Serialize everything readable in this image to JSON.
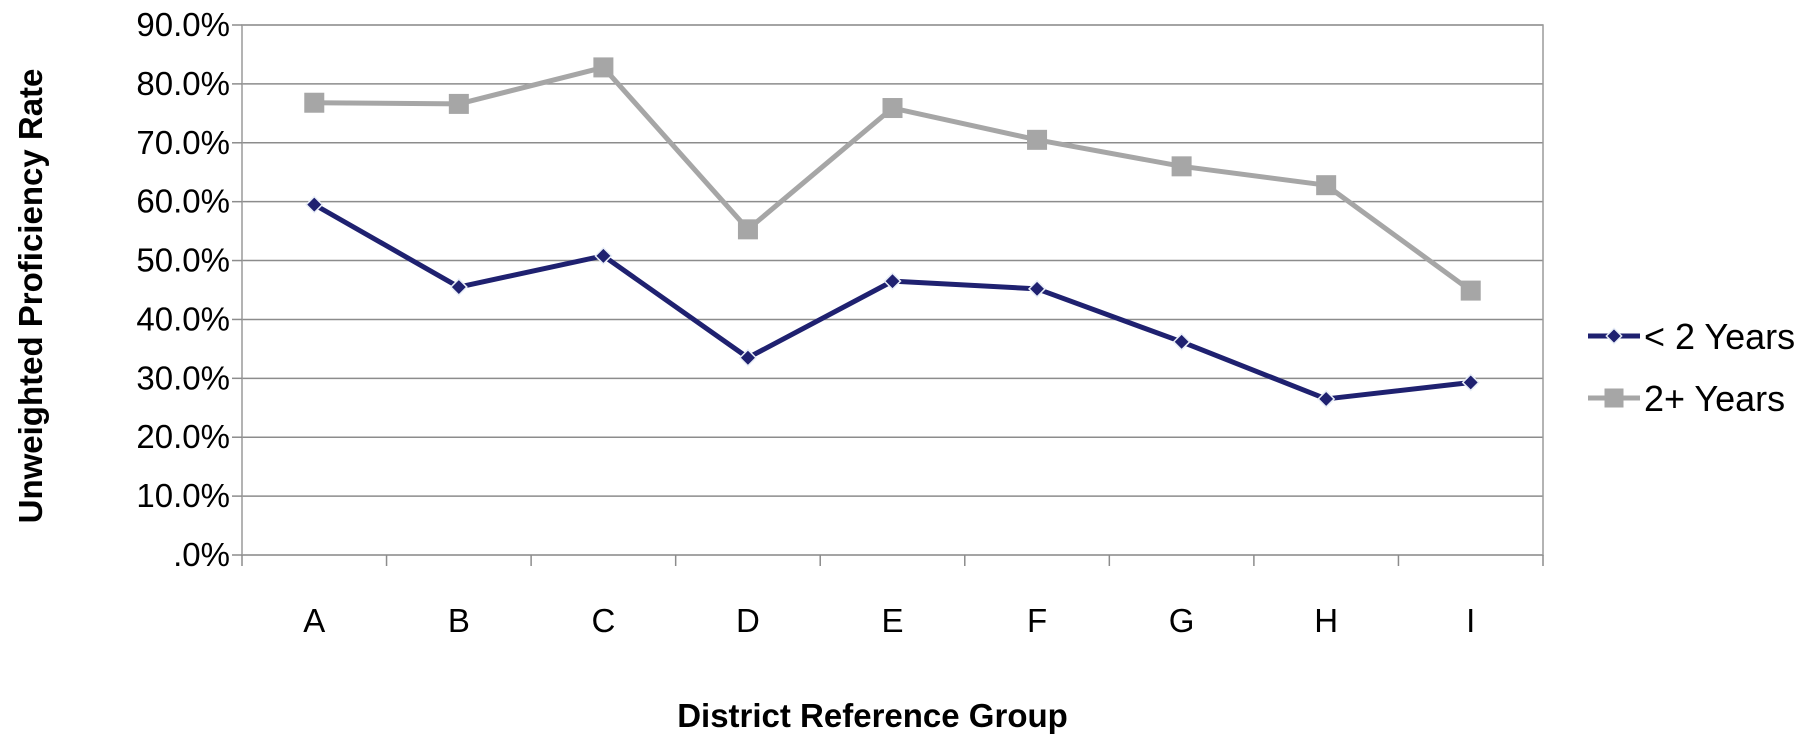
{
  "chart_data": {
    "type": "line",
    "title": "",
    "xlabel": "District Reference Group",
    "ylabel": "Unweighted Proficiency Rate",
    "categories": [
      "A",
      "B",
      "C",
      "D",
      "E",
      "F",
      "G",
      "H",
      "I"
    ],
    "ylim": [
      0,
      90
    ],
    "yticks": [
      {
        "value": 0,
        "label": ".0%"
      },
      {
        "value": 10,
        "label": "10.0%"
      },
      {
        "value": 20,
        "label": "20.0%"
      },
      {
        "value": 30,
        "label": "30.0%"
      },
      {
        "value": 40,
        "label": "40.0%"
      },
      {
        "value": 50,
        "label": "50.0%"
      },
      {
        "value": 60,
        "label": "60.0%"
      },
      {
        "value": 70,
        "label": "70.0%"
      },
      {
        "value": 80,
        "label": "80.0%"
      },
      {
        "value": 90,
        "label": "90.0%"
      }
    ],
    "grid": true,
    "legend_position": "right",
    "series": [
      {
        "name": "< 2 Years",
        "marker": "diamond",
        "color": "#1f2170",
        "values": [
          59.5,
          45.5,
          50.8,
          33.5,
          46.5,
          45.2,
          36.2,
          26.5,
          29.3
        ]
      },
      {
        "name": "2+ Years",
        "marker": "square",
        "color": "#a6a6a6",
        "values": [
          76.8,
          76.6,
          82.8,
          55.3,
          75.9,
          70.5,
          66.0,
          62.8,
          44.9
        ]
      }
    ]
  }
}
